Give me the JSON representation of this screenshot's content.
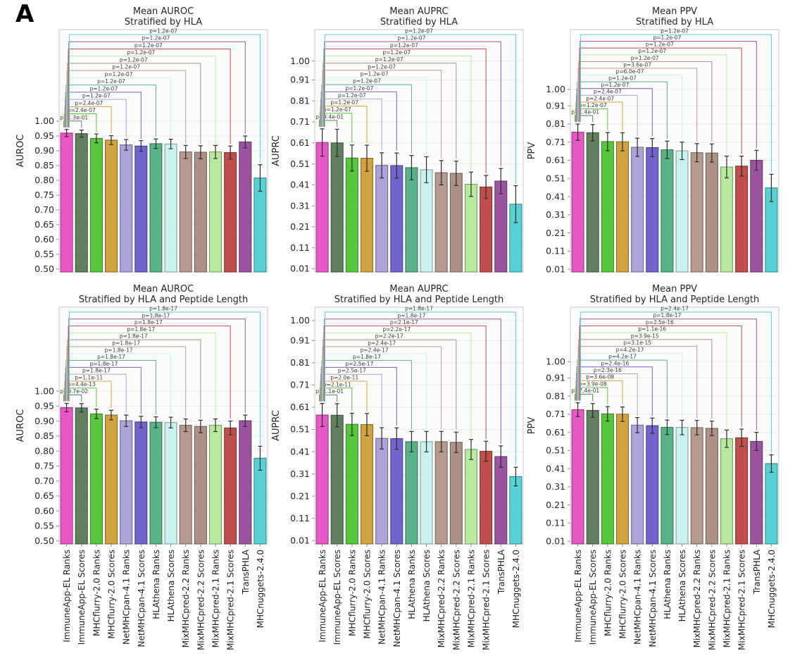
{
  "figure": {
    "panel_label": "A"
  },
  "chart_data": {
    "type": "bar",
    "layout": "2x3-grid",
    "categories": [
      "ImmuneApp-EL Ranks",
      "ImmuneApp-EL Scores",
      "MHCflurry-2.0 Ranks",
      "MHCflurry-2.0 Scores",
      "NetMHCpan-4.1 Ranks",
      "NetMHCpan-4.1 Scores",
      "HLAthena Ranks",
      "HLAthena Scores",
      "MixMHCpred-2.2 Ranks",
      "MixMHCpred-2.2 Scores",
      "MixMHCpred-2.1 Ranks",
      "MixMHCpred-2.1 Scores",
      "TransPHLA",
      "MHCnuggets-2.4.0"
    ],
    "bar_colors": [
      "#e858c4",
      "#60805f",
      "#57c83d",
      "#d2a440",
      "#aaa4d7",
      "#7065cc",
      "#58b28a",
      "#c9f2ee",
      "#b59b8d",
      "#ac9285",
      "#b9e99e",
      "#c04f4b",
      "#9b55a0",
      "#57d1d4"
    ],
    "error_bar_color": "#2b2b2b",
    "charts": [
      {
        "title_line1": "Mean AUROC",
        "title_line2": "Stratified by HLA",
        "ylabel": "AUROC",
        "ytick_labels": [
          "0.50",
          "0.55",
          "0.60",
          "0.65",
          "0.70",
          "0.75",
          "0.80",
          "0.85",
          "0.90",
          "0.95",
          "1.00"
        ],
        "ytick_values": [
          0.5,
          0.55,
          0.6,
          0.65,
          0.7,
          0.75,
          0.8,
          0.85,
          0.9,
          0.95,
          1.0
        ],
        "ylim": [
          0.49,
          1.31
        ],
        "values": [
          0.96,
          0.958,
          0.942,
          0.936,
          0.92,
          0.916,
          0.924,
          0.923,
          0.896,
          0.895,
          0.896,
          0.894,
          0.93,
          0.808
        ],
        "errors": [
          0.012,
          0.012,
          0.015,
          0.015,
          0.018,
          0.018,
          0.016,
          0.016,
          0.022,
          0.022,
          0.022,
          0.022,
          0.02,
          0.045
        ],
        "p_values": [
          "p=1.3e-01",
          "p=2.4e-07",
          "p=2.4e-07",
          "p=1.2e-07",
          "p=1.2e-07",
          "p=1.2e-07",
          "p=1.2e-07",
          "p=1.2e-07",
          "p=1.2e-07",
          "p=1.2e-07",
          "p=1.2e-07",
          "p=1.2e-07",
          "p=1.2e-07"
        ],
        "show_x_labels": false
      },
      {
        "title_line1": "Mean AUPRC",
        "title_line2": "Stratified by HLA",
        "ylabel": "AUPRC",
        "ytick_labels": [
          "0.01",
          "0.11",
          "0.21",
          "0.31",
          "0.41",
          "0.51",
          "0.61",
          "0.71",
          "0.81",
          "0.91",
          "1.00"
        ],
        "ytick_values": [
          0.01,
          0.11,
          0.21,
          0.31,
          0.41,
          0.51,
          0.61,
          0.71,
          0.81,
          0.91,
          1.0
        ],
        "ylim": [
          -0.005,
          1.15
        ],
        "values": [
          0.612,
          0.61,
          0.538,
          0.537,
          0.503,
          0.502,
          0.492,
          0.482,
          0.468,
          0.465,
          0.413,
          0.4,
          0.428,
          0.318
        ],
        "errors": [
          0.065,
          0.065,
          0.062,
          0.062,
          0.06,
          0.06,
          0.058,
          0.062,
          0.058,
          0.058,
          0.058,
          0.055,
          0.06,
          0.088
        ],
        "p_values": [
          "p=9.4e-01",
          "p=1.2e-07",
          "p=1.2e-07",
          "p=1.2e-07",
          "p=1.2e-07",
          "p=1.2e-07",
          "p=1.2e-07",
          "p=1.2e-07",
          "p=1.2e-07",
          "p=1.2e-07",
          "p=1.2e-07",
          "p=1.2e-07",
          "p=1.2e-07"
        ],
        "show_x_labels": false
      },
      {
        "title_line1": "Mean PPV",
        "title_line2": "Stratified by HLA",
        "ylabel": "PPV",
        "ytick_labels": [
          "0.01",
          "0.11",
          "0.21",
          "0.31",
          "0.41",
          "0.51",
          "0.61",
          "0.71",
          "0.81",
          "0.91",
          "1.00"
        ],
        "ytick_values": [
          0.01,
          0.11,
          0.21,
          0.31,
          0.41,
          0.51,
          0.61,
          0.71,
          0.81,
          0.91,
          1.0
        ],
        "ylim": [
          -0.005,
          1.33
        ],
        "values": [
          0.765,
          0.762,
          0.713,
          0.712,
          0.682,
          0.68,
          0.668,
          0.662,
          0.652,
          0.65,
          0.573,
          0.578,
          0.61,
          0.458
        ],
        "errors": [
          0.045,
          0.045,
          0.05,
          0.05,
          0.05,
          0.05,
          0.048,
          0.048,
          0.05,
          0.05,
          0.06,
          0.055,
          0.055,
          0.075
        ],
        "p_values": [
          "p=1.4e-01",
          "p=1.2e-07",
          "p=2.4e-07",
          "p=2.4e-07",
          "p=1.2e-07",
          "p=1.2e-07",
          "p=6.0e-07",
          "p=3.6e-07",
          "p=1.2e-07",
          "p=1.2e-07",
          "p=1.2e-07",
          "p=1.2e-07",
          "p=1.2e-07"
        ],
        "show_x_labels": false
      },
      {
        "title_line1": "Mean AUROC",
        "title_line2": "Stratified by HLA and Peptide Length",
        "ylabel": "AUROC",
        "ytick_labels": [
          "0.50",
          "0.55",
          "0.60",
          "0.65",
          "0.70",
          "0.75",
          "0.80",
          "0.85",
          "0.90",
          "0.95",
          "1.00"
        ],
        "ytick_values": [
          0.5,
          0.55,
          0.6,
          0.65,
          0.7,
          0.75,
          0.8,
          0.85,
          0.9,
          0.95,
          1.0
        ],
        "ylim": [
          0.49,
          1.28
        ],
        "values": [
          0.945,
          0.944,
          0.924,
          0.92,
          0.901,
          0.897,
          0.896,
          0.895,
          0.886,
          0.882,
          0.886,
          0.877,
          0.901,
          0.776
        ],
        "errors": [
          0.014,
          0.014,
          0.016,
          0.016,
          0.019,
          0.019,
          0.018,
          0.018,
          0.021,
          0.021,
          0.021,
          0.023,
          0.019,
          0.04
        ],
        "p_values": [
          "p=9.7e-02",
          "p=4.4e-13",
          "p=1.1e-11",
          "p=1.8e-17",
          "p=1.8e-17",
          "p=1.8e-17",
          "p=1.8e-17",
          "p=1.8e-17",
          "p=1.8e-17",
          "p=1.8e-17",
          "p=1.8e-17",
          "p=1.8e-17",
          "p=1.8e-17"
        ],
        "show_x_labels": true
      },
      {
        "title_line1": "Mean AUPRC",
        "title_line2": "Stratified by HLA and Peptide Length",
        "ylabel": "AUPRC",
        "ytick_labels": [
          "0.01",
          "0.11",
          "0.21",
          "0.31",
          "0.41",
          "0.51",
          "0.61",
          "0.71",
          "0.81",
          "0.91",
          "1.00"
        ],
        "ytick_values": [
          0.01,
          0.11,
          0.21,
          0.31,
          0.41,
          0.51,
          0.61,
          0.71,
          0.81,
          0.91,
          1.0
        ],
        "ylim": [
          -0.005,
          1.06
        ],
        "values": [
          0.575,
          0.574,
          0.533,
          0.532,
          0.47,
          0.469,
          0.455,
          0.455,
          0.455,
          0.452,
          0.42,
          0.412,
          0.388,
          0.298
        ],
        "errors": [
          0.052,
          0.052,
          0.05,
          0.05,
          0.048,
          0.048,
          0.046,
          0.046,
          0.046,
          0.046,
          0.045,
          0.045,
          0.048,
          0.042
        ],
        "p_values": [
          "p=1.1e-01",
          "p=2.1e-11",
          "p=2.0e-11",
          "p=2.5e-17",
          "p=2.5e-17",
          "p=1.8e-17",
          "p=2.4e-17",
          "p=2.4e-17",
          "p=2.2e-17",
          "p=2.2e-17",
          "p=2.1e-17",
          "p=1.8e-17",
          "p=1.8e-17"
        ],
        "show_x_labels": true
      },
      {
        "title_line1": "Mean PPV",
        "title_line2": "Stratified by HLA and Peptide Length",
        "ylabel": "PPV",
        "ytick_labels": [
          "0.01",
          "0.11",
          "0.21",
          "0.31",
          "0.41",
          "0.51",
          "0.61",
          "0.71",
          "0.81",
          "0.91",
          "1.00"
        ],
        "ytick_values": [
          0.01,
          0.11,
          0.21,
          0.31,
          0.41,
          0.51,
          0.61,
          0.71,
          0.81,
          0.91,
          1.0
        ],
        "ylim": [
          -0.005,
          1.3
        ],
        "values": [
          0.735,
          0.731,
          0.712,
          0.71,
          0.65,
          0.647,
          0.638,
          0.637,
          0.636,
          0.632,
          0.575,
          0.58,
          0.56,
          0.438
        ],
        "errors": [
          0.038,
          0.038,
          0.04,
          0.04,
          0.042,
          0.042,
          0.04,
          0.04,
          0.04,
          0.04,
          0.048,
          0.048,
          0.05,
          0.048
        ],
        "p_values": [
          "p=7.4e-01",
          "p=3.9e-08",
          "p=3.6e-08",
          "p=2.3e-16",
          "p=2.4e-16",
          "p=4.2e-17",
          "p=4.2e-17",
          "p=3.1e-15",
          "p=3.9e-15",
          "p=1.1e-16",
          "p=2.5e-16",
          "p=1.8e-17",
          "p=2.4e-17"
        ],
        "show_x_labels": true
      }
    ]
  }
}
